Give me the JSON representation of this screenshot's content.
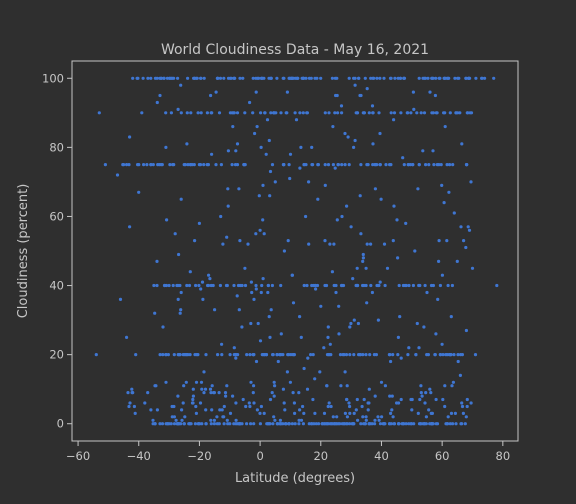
{
  "chart_data": {
    "type": "scatter",
    "title": "World Cloudiness Data - May 16, 2021",
    "xlabel": "Latitude (degrees)",
    "ylabel": "Cloudiness (percent)",
    "xlim": [
      -62,
      85
    ],
    "ylim": [
      -5,
      105
    ],
    "xticks": [
      -60,
      -40,
      -20,
      0,
      20,
      40,
      60,
      80
    ],
    "yticks": [
      0,
      20,
      40,
      60,
      80,
      100
    ],
    "grid": false,
    "legend": "none",
    "colors": {
      "background": "#2f2f2f",
      "axes": "#c6c6c6",
      "points": "#3f76d2"
    },
    "series": [
      {
        "points": [
          [
            -54,
            20
          ],
          [
            -53,
            90
          ],
          [
            -51,
            75
          ],
          [
            -47,
            72
          ],
          [
            -46,
            36
          ],
          [
            -45,
            75
          ],
          [
            -44,
            25
          ],
          [
            -43,
            83
          ],
          [
            -43,
            57
          ],
          [
            -42,
            100
          ],
          [
            -41,
            20
          ],
          [
            -40,
            67
          ],
          [
            -39,
            90
          ],
          [
            -38,
            6
          ],
          [
            -37,
            100
          ],
          [
            -36,
            4
          ],
          [
            -35,
            40
          ],
          [
            -34,
            47
          ],
          [
            -33,
            0
          ],
          [
            -33,
            95
          ],
          [
            -32,
            28
          ],
          [
            -31,
            20
          ],
          [
            -30,
            40
          ],
          [
            -29,
            5
          ],
          [
            -28,
            55
          ],
          [
            -27,
            36
          ],
          [
            -26,
            65
          ],
          [
            -25,
            0
          ],
          [
            -24,
            90
          ],
          [
            -23,
            44
          ],
          [
            -22,
            8
          ],
          [
            -21,
            3
          ],
          [
            -20,
            58
          ],
          [
            -19,
            41
          ],
          [
            -18,
            10
          ],
          [
            -17,
            40
          ],
          [
            -16,
            78
          ],
          [
            -15,
            33
          ],
          [
            -14,
            20
          ],
          [
            -13,
            60
          ],
          [
            -12,
            2
          ],
          [
            -11,
            54
          ],
          [
            -10,
            0
          ],
          [
            -9,
            86
          ],
          [
            -8,
            19
          ],
          [
            -7,
            68
          ],
          [
            -6,
            28
          ],
          [
            -5,
            45
          ],
          [
            -4,
            52
          ],
          [
            -3,
            12
          ],
          [
            -2,
            6
          ],
          [
            -1,
            86
          ],
          [
            0,
            56
          ],
          [
            1,
            42
          ],
          [
            2,
            78
          ],
          [
            3,
            31
          ],
          [
            4,
            9
          ],
          [
            5,
            70
          ],
          [
            6,
            18
          ],
          [
            7,
            26
          ],
          [
            8,
            50
          ],
          [
            9,
            96
          ],
          [
            10,
            12
          ],
          [
            11,
            35
          ],
          [
            12,
            88
          ],
          [
            13,
            31
          ],
          [
            14,
            5
          ],
          [
            15,
            60
          ],
          [
            16,
            52
          ],
          [
            17,
            80
          ],
          [
            18,
            13
          ],
          [
            19,
            65
          ],
          [
            20,
            34
          ],
          [
            21,
            22
          ],
          [
            22,
            11
          ],
          [
            23,
            52
          ],
          [
            24,
            86
          ],
          [
            25,
            38
          ],
          [
            26,
            26
          ],
          [
            27,
            60
          ],
          [
            28,
            15
          ],
          [
            29,
            83
          ],
          [
            30,
            57
          ],
          [
            31,
            3
          ],
          [
            32,
            45
          ],
          [
            33,
            66
          ],
          [
            34,
            49
          ],
          [
            35,
            1
          ],
          [
            36,
            10
          ],
          [
            37,
            38
          ],
          [
            38,
            68
          ],
          [
            39,
            30
          ],
          [
            40,
            12
          ],
          [
            41,
            52
          ],
          [
            42,
            45
          ],
          [
            43,
            18
          ],
          [
            44,
            88
          ],
          [
            45,
            6
          ],
          [
            46,
            31
          ],
          [
            47,
            77
          ],
          [
            48,
            58
          ],
          [
            49,
            22
          ],
          [
            50,
            4
          ],
          [
            51,
            50
          ],
          [
            52,
            68
          ],
          [
            53,
            11
          ],
          [
            54,
            28
          ],
          [
            55,
            38
          ],
          [
            56,
            96
          ],
          [
            57,
            79
          ],
          [
            58,
            7
          ],
          [
            59,
            53
          ],
          [
            60,
            23
          ],
          [
            61,
            86
          ],
          [
            62,
            2
          ],
          [
            63,
            31
          ],
          [
            64,
            61
          ],
          [
            65,
            47
          ],
          [
            66,
            14
          ],
          [
            67,
            3
          ],
          [
            68,
            27
          ],
          [
            69,
            56
          ],
          [
            70,
            45
          ],
          [
            71,
            20
          ],
          [
            73,
            100
          ],
          [
            77,
            100
          ],
          [
            78,
            40
          ]
        ],
        "clusters": [
          {
            "y": 100,
            "x_from": -42,
            "x_to": 74,
            "count": 130
          },
          {
            "y": 90,
            "x_from": -35,
            "x_to": 70,
            "count": 70
          },
          {
            "y": 75,
            "x_from": -46,
            "x_to": 70,
            "count": 90
          },
          {
            "y": 40,
            "x_from": -35,
            "x_to": 65,
            "count": 70
          },
          {
            "y": 20,
            "x_from": -33,
            "x_to": 70,
            "count": 90
          },
          {
            "y": 0,
            "x_from": -36,
            "x_to": 68,
            "count": 150
          }
        ],
        "scatter": [
          {
            "x_from": -44,
            "x_to": 70,
            "y_from": 0,
            "y_to": 12,
            "count": 160
          },
          {
            "x_from": -35,
            "x_to": 70,
            "y_from": 12,
            "y_to": 98,
            "count": 140
          }
        ]
      }
    ]
  }
}
